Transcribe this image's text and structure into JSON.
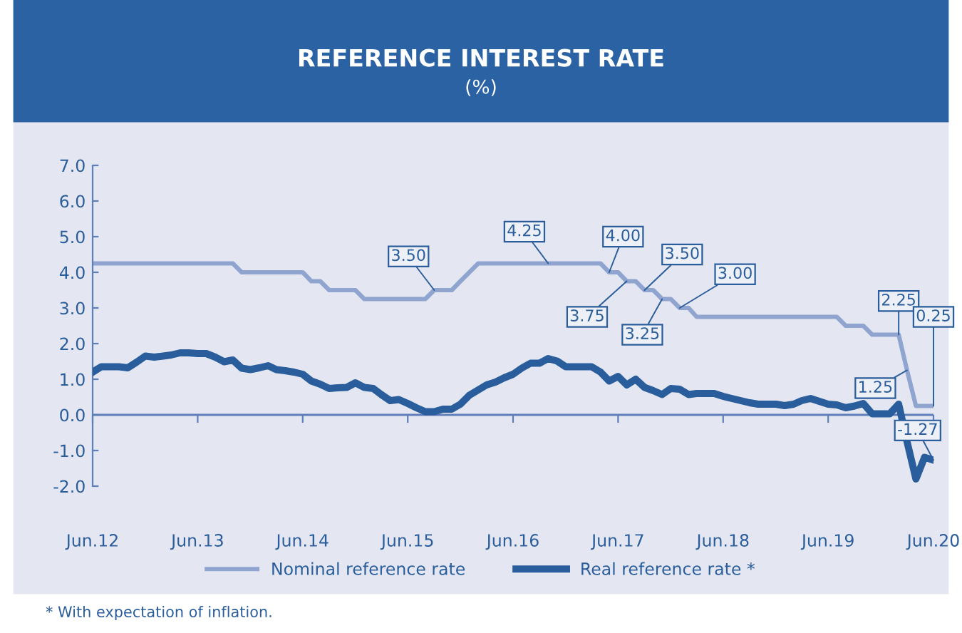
{
  "chart_data": {
    "type": "line",
    "title": "REFERENCE INTEREST RATE",
    "subtitle": "(%)",
    "x": [
      "2012-06",
      "2012-07",
      "2012-08",
      "2012-09",
      "2012-10",
      "2012-11",
      "2012-12",
      "2013-01",
      "2013-02",
      "2013-03",
      "2013-04",
      "2013-05",
      "2013-06",
      "2013-07",
      "2013-08",
      "2013-09",
      "2013-10",
      "2013-11",
      "2013-12",
      "2014-01",
      "2014-02",
      "2014-03",
      "2014-04",
      "2014-05",
      "2014-06",
      "2014-07",
      "2014-08",
      "2014-09",
      "2014-10",
      "2014-11",
      "2014-12",
      "2015-01",
      "2015-02",
      "2015-03",
      "2015-04",
      "2015-05",
      "2015-06",
      "2015-07",
      "2015-08",
      "2015-09",
      "2015-10",
      "2015-11",
      "2015-12",
      "2016-01",
      "2016-02",
      "2016-03",
      "2016-04",
      "2016-05",
      "2016-06",
      "2016-07",
      "2016-08",
      "2016-09",
      "2016-10",
      "2016-11",
      "2016-12",
      "2017-01",
      "2017-02",
      "2017-03",
      "2017-04",
      "2017-05",
      "2017-06",
      "2017-07",
      "2017-08",
      "2017-09",
      "2017-10",
      "2017-11",
      "2017-12",
      "2018-01",
      "2018-02",
      "2018-03",
      "2018-04",
      "2018-05",
      "2018-06",
      "2018-07",
      "2018-08",
      "2018-09",
      "2018-10",
      "2018-11",
      "2018-12",
      "2019-01",
      "2019-02",
      "2019-03",
      "2019-04",
      "2019-05",
      "2019-06",
      "2019-07",
      "2019-08",
      "2019-09",
      "2019-10",
      "2019-11",
      "2019-12",
      "2020-01",
      "2020-02",
      "2020-03",
      "2020-04",
      "2020-05",
      "2020-06"
    ],
    "series": [
      {
        "name": "Nominal reference rate",
        "color": "#8fa5cf",
        "values": [
          4.25,
          4.25,
          4.25,
          4.25,
          4.25,
          4.25,
          4.25,
          4.25,
          4.25,
          4.25,
          4.25,
          4.25,
          4.25,
          4.25,
          4.25,
          4.25,
          4.25,
          4.0,
          4.0,
          4.0,
          4.0,
          4.0,
          4.0,
          4.0,
          4.0,
          3.75,
          3.75,
          3.5,
          3.5,
          3.5,
          3.5,
          3.25,
          3.25,
          3.25,
          3.25,
          3.25,
          3.25,
          3.25,
          3.25,
          3.5,
          3.5,
          3.5,
          3.75,
          4.0,
          4.25,
          4.25,
          4.25,
          4.25,
          4.25,
          4.25,
          4.25,
          4.25,
          4.25,
          4.25,
          4.25,
          4.25,
          4.25,
          4.25,
          4.25,
          4.0,
          4.0,
          3.75,
          3.75,
          3.5,
          3.5,
          3.25,
          3.25,
          3.0,
          3.0,
          2.75,
          2.75,
          2.75,
          2.75,
          2.75,
          2.75,
          2.75,
          2.75,
          2.75,
          2.75,
          2.75,
          2.75,
          2.75,
          2.75,
          2.75,
          2.75,
          2.75,
          2.5,
          2.5,
          2.5,
          2.25,
          2.25,
          2.25,
          2.25,
          1.25,
          0.25,
          0.25,
          0.25
        ]
      },
      {
        "name": "Real reference rate *",
        "color": "#2a5d9b",
        "values": [
          1.2,
          1.35,
          1.35,
          1.35,
          1.32,
          1.48,
          1.65,
          1.62,
          1.65,
          1.68,
          1.74,
          1.74,
          1.72,
          1.72,
          1.62,
          1.49,
          1.54,
          1.31,
          1.27,
          1.32,
          1.38,
          1.27,
          1.24,
          1.2,
          1.14,
          0.95,
          0.86,
          0.74,
          0.76,
          0.77,
          0.9,
          0.77,
          0.74,
          0.57,
          0.4,
          0.43,
          0.32,
          0.2,
          0.09,
          0.09,
          0.16,
          0.16,
          0.3,
          0.55,
          0.7,
          0.84,
          0.92,
          1.04,
          1.14,
          1.31,
          1.45,
          1.45,
          1.58,
          1.51,
          1.35,
          1.35,
          1.35,
          1.35,
          1.2,
          0.95,
          1.08,
          0.84,
          1.0,
          0.77,
          0.68,
          0.57,
          0.74,
          0.72,
          0.57,
          0.6,
          0.6,
          0.6,
          0.52,
          0.46,
          0.4,
          0.34,
          0.3,
          0.3,
          0.3,
          0.26,
          0.3,
          0.4,
          0.46,
          0.38,
          0.3,
          0.28,
          0.2,
          0.25,
          0.32,
          0.03,
          0.03,
          0.03,
          0.3,
          -0.75,
          -1.8,
          -1.19,
          -1.27
        ]
      }
    ],
    "xlim": [
      "2012-06",
      "2020-06"
    ],
    "xticks": [
      {
        "value": "2012-06",
        "label": "Jun.12"
      },
      {
        "value": "2013-06",
        "label": "Jun.13"
      },
      {
        "value": "2014-06",
        "label": "Jun.14"
      },
      {
        "value": "2015-06",
        "label": "Jun.15"
      },
      {
        "value": "2016-06",
        "label": "Jun.16"
      },
      {
        "value": "2017-06",
        "label": "Jun.17"
      },
      {
        "value": "2018-06",
        "label": "Jun.18"
      },
      {
        "value": "2019-06",
        "label": "Jun.19"
      },
      {
        "value": "2020-06",
        "label": "Jun.20"
      }
    ],
    "ylim": [
      -2,
      7
    ],
    "yticks": [
      {
        "value": -2,
        "label": "-2.0"
      },
      {
        "value": -1,
        "label": "-1.0"
      },
      {
        "value": 0,
        "label": "0.0"
      },
      {
        "value": 1,
        "label": "1.0"
      },
      {
        "value": 2,
        "label": "2.0"
      },
      {
        "value": 3,
        "label": "3.0"
      },
      {
        "value": 4,
        "label": "4.0"
      },
      {
        "value": 5,
        "label": "5.0"
      },
      {
        "value": 6,
        "label": "6.0"
      },
      {
        "value": 7,
        "label": "7.0"
      }
    ],
    "ref_lines": [
      {
        "axis": "y",
        "value": 0,
        "color": "#5f7fb8"
      }
    ],
    "grid": false,
    "legend": "bottom",
    "marker": "none",
    "line_style": "solid",
    "annotations": [
      {
        "text": "3.50",
        "x": "2015-09",
        "y": 3.5
      },
      {
        "text": "4.25",
        "x": "2016-10",
        "y": 4.25
      },
      {
        "text": "4.00",
        "x": "2017-05",
        "y": 4.0
      },
      {
        "text": "3.75",
        "x": "2017-07",
        "y": 3.75
      },
      {
        "text": "3.50",
        "x": "2017-09",
        "y": 3.5
      },
      {
        "text": "3.25",
        "x": "2017-11",
        "y": 3.25
      },
      {
        "text": "3.00",
        "x": "2018-01",
        "y": 3.0
      },
      {
        "text": "2.25",
        "x": "2020-02",
        "y": 2.25
      },
      {
        "text": "0.25",
        "x": "2020-06",
        "y": 0.25
      },
      {
        "text": "1.25",
        "x": "2020-03",
        "y": 1.25
      },
      {
        "text": "-1.27",
        "x": "2020-06",
        "y": -1.27
      },
      "* With expectation of inflation."
    ]
  }
}
